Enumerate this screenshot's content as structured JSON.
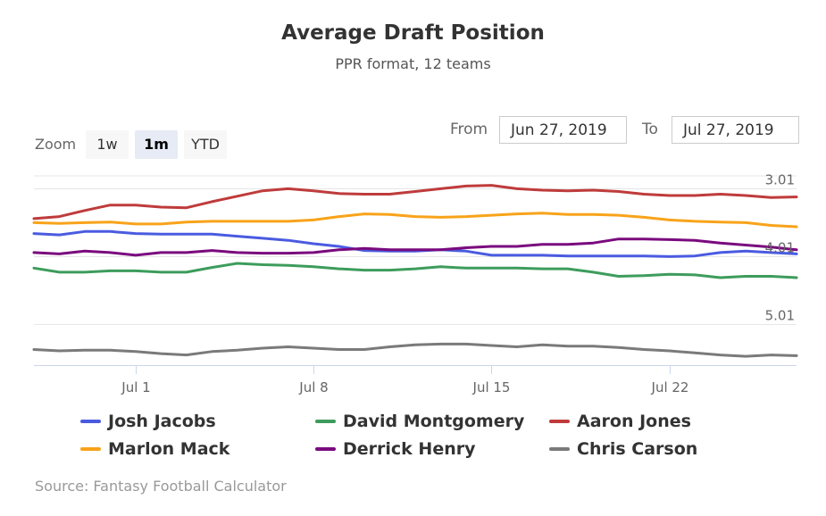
{
  "chart_data": {
    "type": "line",
    "title": "Average Draft Position",
    "subtitle": "PPR format, 12 teams",
    "xlabel": "",
    "ylabel": "",
    "x_start": "2019-06-27",
    "x_end": "2019-07-27",
    "x_ticks": [
      "Jul 1",
      "Jul 8",
      "Jul 15",
      "Jul 22"
    ],
    "y_ticks": [
      "3.01",
      "4.01",
      "5.01"
    ],
    "ylim": [
      2.83,
      5.62
    ],
    "y_reversed": true,
    "grid": true,
    "legend_position": "bottom",
    "series": [
      {
        "name": "Josh Jacobs",
        "color": "#4a5be0",
        "values": [
          3.68,
          3.7,
          3.65,
          3.65,
          3.68,
          3.69,
          3.69,
          3.69,
          3.72,
          3.75,
          3.78,
          3.83,
          3.87,
          3.93,
          3.94,
          3.94,
          3.92,
          3.94,
          4.0,
          4.0,
          4.0,
          4.01,
          4.01,
          4.01,
          4.01,
          4.02,
          4.01,
          3.96,
          3.94,
          3.96,
          3.98
        ]
      },
      {
        "name": "David Montgomery",
        "color": "#3d9c5c",
        "values": [
          4.19,
          4.25,
          4.25,
          4.23,
          4.23,
          4.25,
          4.25,
          4.18,
          4.12,
          4.14,
          4.15,
          4.17,
          4.2,
          4.22,
          4.22,
          4.2,
          4.17,
          4.19,
          4.19,
          4.19,
          4.2,
          4.2,
          4.25,
          4.31,
          4.3,
          4.28,
          4.29,
          4.33,
          4.31,
          4.31,
          4.33
        ]
      },
      {
        "name": "Aaron Jones",
        "color": "#bf3b3b",
        "values": [
          3.46,
          3.43,
          3.34,
          3.26,
          3.26,
          3.29,
          3.3,
          3.21,
          3.13,
          3.05,
          3.02,
          3.05,
          3.09,
          3.1,
          3.1,
          3.06,
          3.02,
          2.98,
          2.97,
          3.02,
          3.04,
          3.05,
          3.04,
          3.06,
          3.1,
          3.12,
          3.12,
          3.1,
          3.12,
          3.15,
          3.14
        ]
      },
      {
        "name": "Marlon Mack",
        "color": "#f8a31a",
        "values": [
          3.52,
          3.53,
          3.52,
          3.51,
          3.54,
          3.54,
          3.51,
          3.5,
          3.5,
          3.5,
          3.5,
          3.48,
          3.43,
          3.39,
          3.4,
          3.43,
          3.44,
          3.43,
          3.41,
          3.39,
          3.38,
          3.4,
          3.4,
          3.41,
          3.44,
          3.48,
          3.5,
          3.51,
          3.52,
          3.56,
          3.58
        ]
      },
      {
        "name": "Derrick Henry",
        "color": "#7a0a7e",
        "values": [
          3.96,
          3.98,
          3.94,
          3.96,
          4.0,
          3.96,
          3.96,
          3.93,
          3.96,
          3.97,
          3.97,
          3.96,
          3.92,
          3.9,
          3.92,
          3.92,
          3.92,
          3.89,
          3.87,
          3.87,
          3.84,
          3.84,
          3.82,
          3.76,
          3.76,
          3.77,
          3.78,
          3.82,
          3.85,
          3.88,
          3.92
        ]
      },
      {
        "name": "Chris Carson",
        "color": "#7a7a7a",
        "values": [
          5.39,
          5.41,
          5.4,
          5.4,
          5.42,
          5.45,
          5.47,
          5.42,
          5.4,
          5.37,
          5.35,
          5.37,
          5.39,
          5.39,
          5.35,
          5.32,
          5.31,
          5.31,
          5.33,
          5.35,
          5.32,
          5.34,
          5.34,
          5.36,
          5.39,
          5.41,
          5.44,
          5.47,
          5.49,
          5.47,
          5.48
        ]
      }
    ]
  },
  "range_selector": {
    "zoom_label": "Zoom",
    "buttons": [
      "1w",
      "1m",
      "YTD"
    ],
    "active": "1m",
    "from_label": "From",
    "from_value": "Jun 27, 2019",
    "to_label": "To",
    "to_value": "Jul 27, 2019"
  },
  "credits": "Source: Fantasy Football Calculator"
}
